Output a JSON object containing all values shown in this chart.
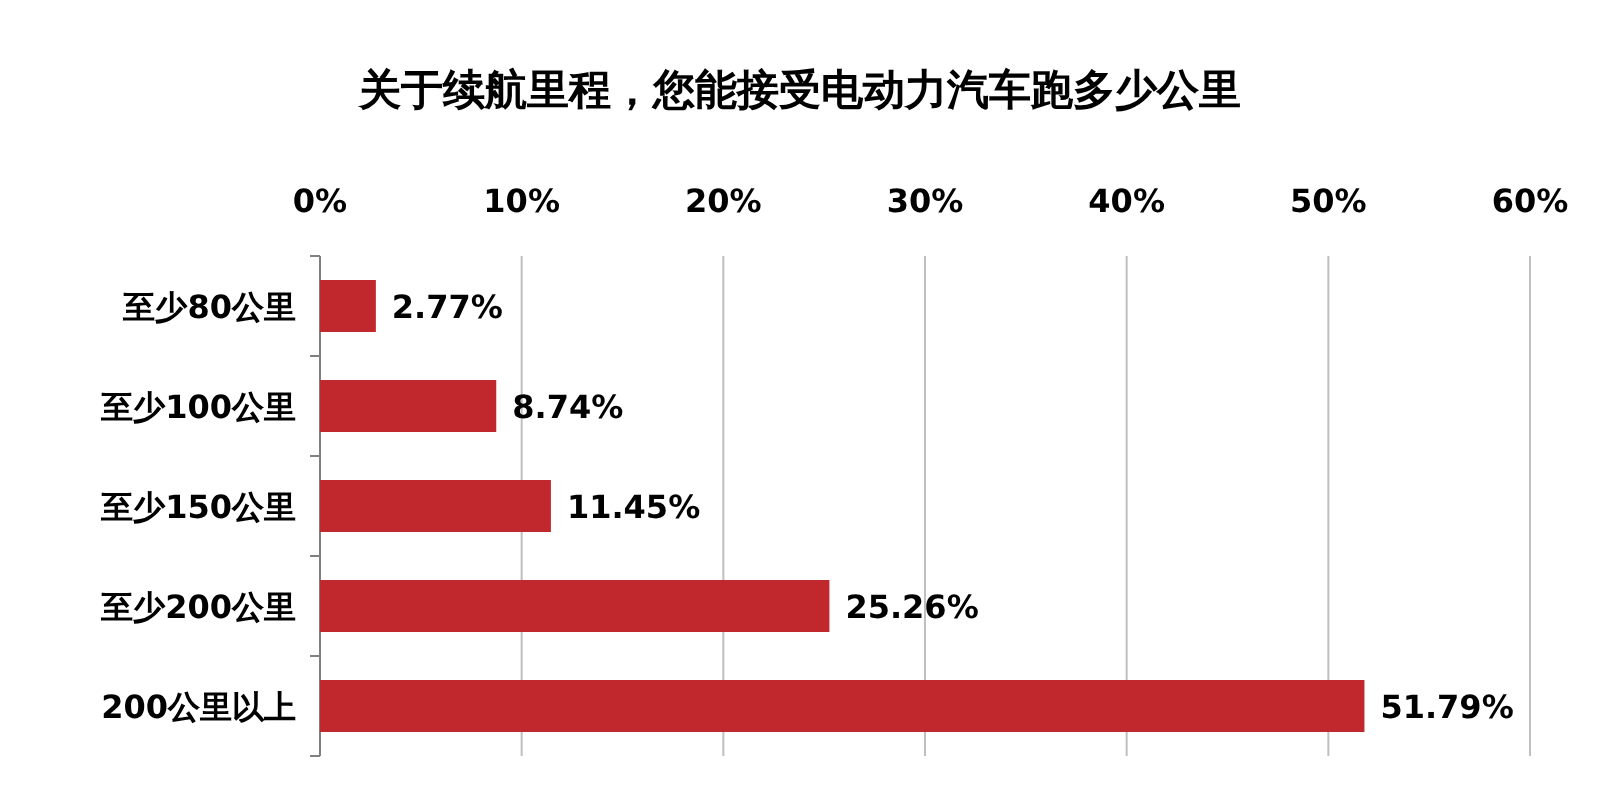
{
  "chart_data": {
    "type": "bar",
    "orientation": "horizontal",
    "title": "关于续航里程，您能接受电动力汽车跑多少公里",
    "categories": [
      "至少80公里",
      "至少100公里",
      "至少150公里",
      "至少200公里",
      "200公里以上"
    ],
    "values": [
      2.77,
      8.74,
      11.45,
      25.26,
      51.79
    ],
    "value_labels": [
      "2.77%",
      "8.74%",
      "11.45%",
      "25.26%",
      "51.79%"
    ],
    "color": "#c0282d",
    "xlim": [
      0,
      60
    ],
    "xticks": [
      {
        "value": 0,
        "label": "0%"
      },
      {
        "value": 10,
        "label": "10%"
      },
      {
        "value": 20,
        "label": "20%"
      },
      {
        "value": 30,
        "label": "30%"
      },
      {
        "value": 40,
        "label": "40%"
      },
      {
        "value": 50,
        "label": "50%"
      },
      {
        "value": 60,
        "label": "60%"
      }
    ],
    "grid": "x"
  }
}
